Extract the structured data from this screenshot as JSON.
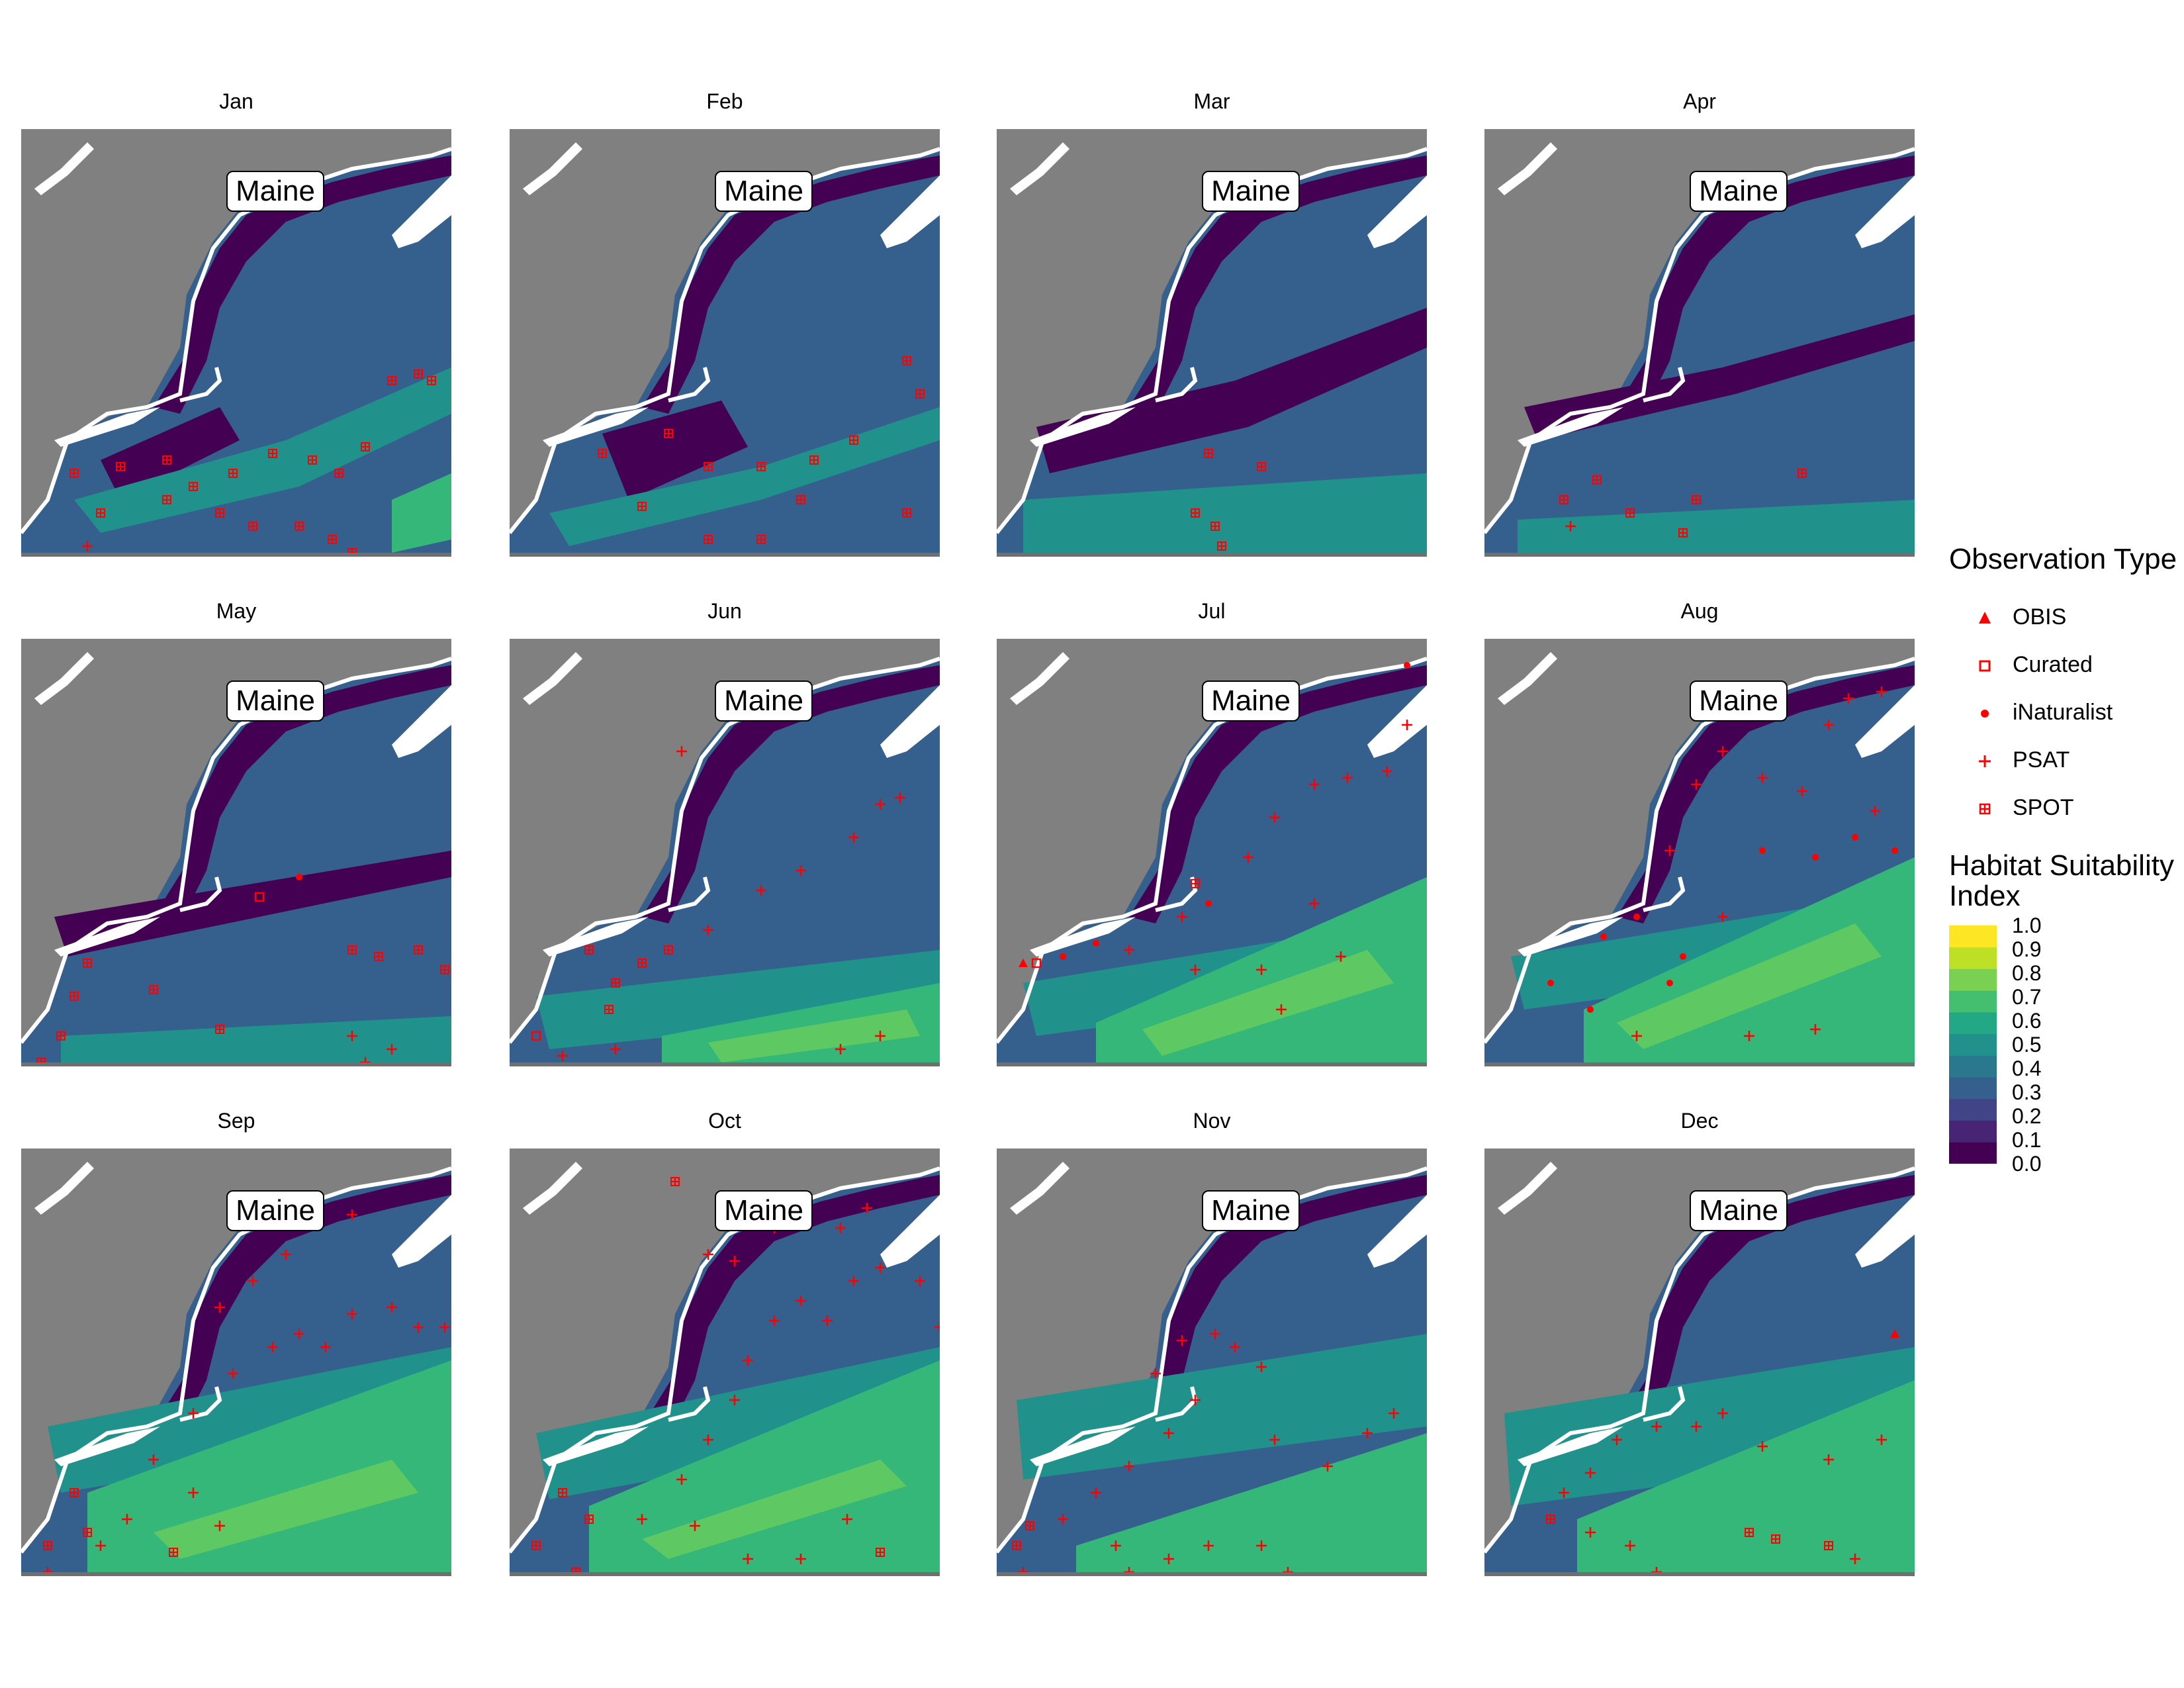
{
  "figure": {
    "panels": [
      {
        "title": "Jan",
        "label": "Maine"
      },
      {
        "title": "Feb",
        "label": "Maine"
      },
      {
        "title": "Mar",
        "label": "Maine"
      },
      {
        "title": "Apr",
        "label": "Maine"
      },
      {
        "title": "May",
        "label": "Maine"
      },
      {
        "title": "Jun",
        "label": "Maine"
      },
      {
        "title": "Jul",
        "label": "Maine"
      },
      {
        "title": "Aug",
        "label": "Maine"
      },
      {
        "title": "Sep",
        "label": "Maine"
      },
      {
        "title": "Oct",
        "label": "Maine"
      },
      {
        "title": "Nov",
        "label": "Maine"
      },
      {
        "title": "Dec",
        "label": "Maine"
      }
    ]
  },
  "legend": {
    "title": "Observation Type",
    "items": [
      {
        "label": "OBIS",
        "icon": "triangle"
      },
      {
        "label": "Curated",
        "icon": "open-square"
      },
      {
        "label": "iNaturalist",
        "icon": "dot"
      },
      {
        "label": "PSAT",
        "icon": "plus"
      },
      {
        "label": "SPOT",
        "icon": "boxed-plus"
      }
    ],
    "point_color": "#ff0000"
  },
  "colorbar": {
    "title_line1": "Habitat Suitability",
    "title_line2": "Index",
    "ticks": [
      "1.0",
      "0.9",
      "0.8",
      "0.7",
      "0.6",
      "0.5",
      "0.4",
      "0.3",
      "0.2",
      "0.1",
      "0.0"
    ],
    "colors": [
      "#440154",
      "#482475",
      "#414487",
      "#355f8d",
      "#2a788e",
      "#21918c",
      "#22a884",
      "#44bf70",
      "#7ad151",
      "#bddf26",
      "#fde725"
    ]
  },
  "map_colors": {
    "land": "#808080",
    "coast": "#ffffff"
  }
}
